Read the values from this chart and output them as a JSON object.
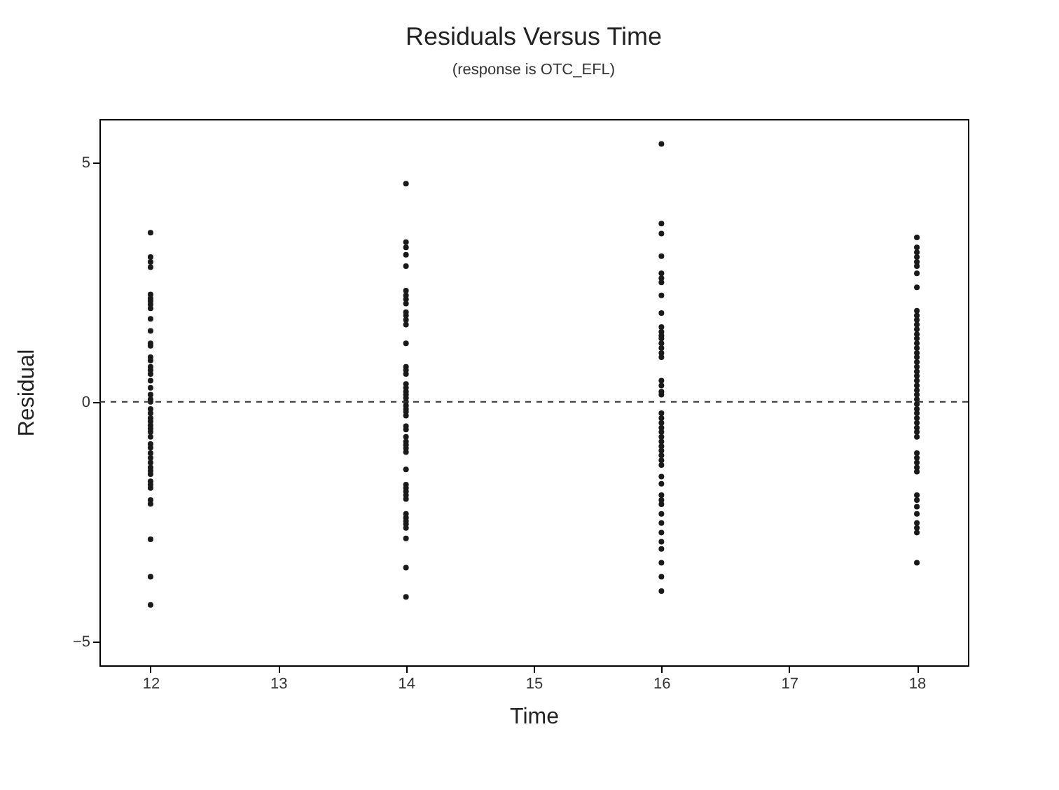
{
  "chart_data": {
    "type": "scatter",
    "title": "Residuals Versus Time",
    "subtitle": "(response is OTC_EFL)",
    "xlabel": "Time",
    "ylabel": "Residual",
    "xlim": [
      11.6,
      18.4
    ],
    "xticks": [
      12,
      13,
      14,
      15,
      16,
      17,
      18
    ],
    "ylim": [
      -5.5,
      5.9
    ],
    "yticks": [
      -5,
      0,
      5
    ],
    "grid": false,
    "marker": "circle",
    "ref_lines": [
      {
        "axis": "y",
        "value": 0,
        "line_style": "dashed",
        "color": "#333333"
      }
    ],
    "series": [
      {
        "color": "#1a1a1a",
        "x": [
          12,
          12,
          12,
          12,
          12,
          12,
          12,
          12,
          12,
          12,
          12,
          12,
          12,
          12,
          12,
          12,
          12,
          12,
          12,
          12,
          12,
          12,
          12,
          12,
          12,
          12,
          12,
          12,
          12,
          12,
          12,
          12,
          12,
          12,
          12,
          12,
          12,
          12,
          12,
          12,
          12,
          12,
          12,
          12,
          12,
          12,
          12
        ],
        "values": [
          3.53,
          3.02,
          2.92,
          2.81,
          2.24,
          2.16,
          2.1,
          2.03,
          1.95,
          1.73,
          1.48,
          1.22,
          1.17,
          0.93,
          0.86,
          0.73,
          0.66,
          0.58,
          0.44,
          0.29,
          0.15,
          0.05,
          0,
          -0.15,
          -0.24,
          -0.34,
          -0.41,
          -0.49,
          -0.56,
          -0.63,
          -0.73,
          -0.88,
          -0.96,
          -1.07,
          -1.17,
          -1.27,
          -1.37,
          -1.44,
          -1.51,
          -1.66,
          -1.73,
          -1.8,
          -2.05,
          -2.13,
          -2.87,
          -3.65,
          -4.24
        ]
      },
      {
        "color": "#1a1a1a",
        "x": [
          14,
          14,
          14,
          14,
          14,
          14,
          14,
          14,
          14,
          14,
          14,
          14,
          14,
          14,
          14,
          14,
          14,
          14,
          14,
          14,
          14,
          14,
          14,
          14,
          14,
          14,
          14,
          14,
          14,
          14,
          14,
          14,
          14,
          14,
          14,
          14,
          14,
          14,
          14,
          14,
          14,
          14,
          14,
          14,
          14,
          14,
          14,
          14
        ],
        "values": [
          4.55,
          3.33,
          3.22,
          3.07,
          2.83,
          2.32,
          2.22,
          2.14,
          2.05,
          1.87,
          1.8,
          1.71,
          1.61,
          1.22,
          0.73,
          0.66,
          0.58,
          0.37,
          0.29,
          0.21,
          0.15,
          0.08,
          0,
          -0.08,
          -0.15,
          -0.21,
          -0.29,
          -0.51,
          -0.58,
          -0.73,
          -0.83,
          -0.9,
          -0.97,
          -1.05,
          -1.41,
          -1.73,
          -1.8,
          -1.87,
          -1.95,
          -2.03,
          -2.34,
          -2.42,
          -2.49,
          -2.55,
          -2.63,
          -2.85,
          -3.46,
          -4.07
        ]
      },
      {
        "color": "#1a1a1a",
        "x": [
          16,
          16,
          16,
          16,
          16,
          16,
          16,
          16,
          16,
          16,
          16,
          16,
          16,
          16,
          16,
          16,
          16,
          16,
          16,
          16,
          16,
          16,
          16,
          16,
          16,
          16,
          16,
          16,
          16,
          16,
          16,
          16,
          16,
          16,
          16,
          16,
          16,
          16,
          16,
          16,
          16,
          16,
          16,
          16,
          16,
          16
        ],
        "values": [
          5.38,
          3.72,
          3.51,
          3.04,
          2.68,
          2.58,
          2.49,
          2.22,
          1.85,
          1.56,
          1.46,
          1.38,
          1.32,
          1.22,
          1.12,
          1.02,
          0.93,
          0.44,
          0.34,
          0.21,
          0.15,
          -0.24,
          -0.34,
          -0.44,
          -0.54,
          -0.63,
          -0.73,
          -0.83,
          -0.93,
          -1.02,
          -1.12,
          -1.22,
          -1.32,
          -1.56,
          -1.71,
          -1.95,
          -2.05,
          -2.14,
          -2.34,
          -2.53,
          -2.73,
          -2.92,
          -3.07,
          -3.36,
          -3.65,
          -3.95
        ]
      },
      {
        "color": "#1a1a1a",
        "x": [
          18,
          18,
          18,
          18,
          18,
          18,
          18,
          18,
          18,
          18,
          18,
          18,
          18,
          18,
          18,
          18,
          18,
          18,
          18,
          18,
          18,
          18,
          18,
          18,
          18,
          18,
          18,
          18,
          18,
          18,
          18,
          18,
          18,
          18,
          18,
          18,
          18,
          18,
          18,
          18,
          18,
          18,
          18,
          18,
          18,
          18,
          18,
          18,
          18
        ],
        "values": [
          3.43,
          3.22,
          3.12,
          3.02,
          2.92,
          2.83,
          2.68,
          2.39,
          1.9,
          1.8,
          1.71,
          1.61,
          1.51,
          1.41,
          1.32,
          1.22,
          1.12,
          1.02,
          0.93,
          0.83,
          0.73,
          0.63,
          0.54,
          0.44,
          0.34,
          0.24,
          0.15,
          0.05,
          -0.05,
          -0.15,
          -0.24,
          -0.34,
          -0.44,
          -0.54,
          -0.63,
          -0.73,
          -1.07,
          -1.17,
          -1.27,
          -1.37,
          -1.46,
          -1.95,
          -2.05,
          -2.19,
          -2.34,
          -2.53,
          -2.63,
          -2.73,
          -3.36
        ]
      }
    ]
  }
}
